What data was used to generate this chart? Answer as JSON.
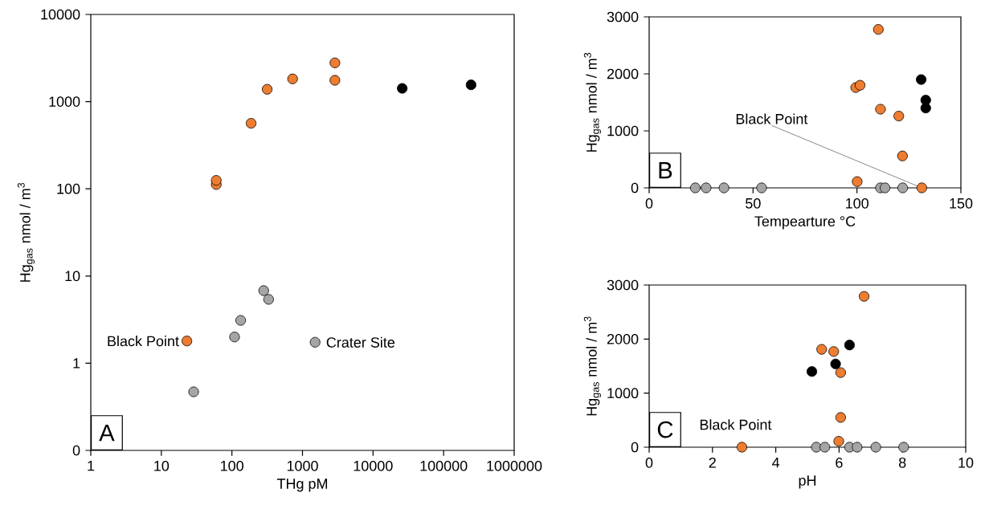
{
  "chart_data": [
    {
      "type": "scatter",
      "xlabel": "THg pM",
      "ylabel": "Hg$_{gas}$ nmol / m$^{3}$",
      "log": "xy",
      "marker": "circle",
      "xlim": [
        1,
        1000000
      ],
      "ylim": [
        0.1,
        10000
      ],
      "xticks": [
        1,
        10,
        100,
        1000,
        10000,
        100000,
        1000000
      ],
      "yticks": [
        {
          "value": 0.1,
          "label": "0"
        },
        1,
        10,
        100,
        1000,
        10000
      ],
      "series": [
        {
          "color": "#ed7d31",
          "x": [
            60,
            60,
            187,
            316,
            725,
            2880,
            2880,
            23
          ],
          "values": [
            112,
            125,
            565,
            1385,
            1824,
            2786,
            1758,
            1.8
          ]
        },
        {
          "color": "#000000",
          "x": [
            25900,
            245000
          ],
          "values": [
            1420,
            1560
          ]
        },
        {
          "color": "#a5a5a5",
          "x": [
            28.7,
            109,
            133,
            282,
            331,
            1510
          ],
          "values": [
            0.47,
            2.0,
            3.1,
            6.8,
            5.4,
            1.74
          ]
        }
      ],
      "annotations": [
        "A",
        {
          "text": "Black Point",
          "x": 23,
          "y": 1.8
        },
        {
          "text": "Crater Site",
          "x": 1510,
          "y": 1.74
        }
      ]
    },
    {
      "type": "scatter",
      "xlabel": "Tempearture °C",
      "ylabel": "Hg$_{gas}$ nmol / m$^{3}$",
      "marker": "circle",
      "xlim": [
        0,
        150
      ],
      "ylim": [
        0,
        3000
      ],
      "xticks": [
        0,
        50,
        100,
        150
      ],
      "yticks": [
        0,
        1000,
        2000,
        3000
      ],
      "series": [
        {
          "color": "#ed7d31",
          "x": [
            110.3,
            99.4,
            101.5,
            111.3,
            120.1,
            121.9,
            100.1,
            131.2
          ],
          "values": [
            2780,
            1760,
            1800,
            1380,
            1260,
            560,
            110,
            0
          ]
        },
        {
          "color": "#000000",
          "x": [
            130.9,
            133.1,
            133.1
          ],
          "values": [
            1900,
            1540,
            1400
          ]
        },
        {
          "color": "#a5a5a5",
          "x": [
            22.2,
            27.4,
            36.0,
            54.1,
            111.3,
            113.5,
            122.0
          ],
          "values": [
            0,
            0,
            0,
            0,
            0,
            0,
            0
          ]
        }
      ],
      "annotations": [
        "B",
        {
          "text": "Black Point",
          "x": 131.2,
          "y": 0
        }
      ]
    },
    {
      "type": "scatter",
      "xlabel": "pH",
      "ylabel": "Hg$_{gas}$ nmol / m$^{3}$",
      "marker": "circle",
      "xlim": [
        0,
        10
      ],
      "ylim": [
        0,
        3000
      ],
      "xticks": [
        0,
        2,
        4,
        6,
        8,
        10
      ],
      "yticks": [
        0,
        1000,
        2000,
        3000
      ],
      "series": [
        {
          "color": "#ed7d31",
          "x": [
            6.79,
            5.45,
            5.83,
            6.05,
            6.05,
            5.99,
            2.93
          ],
          "values": [
            2790,
            1810,
            1770,
            1380,
            550,
            110,
            0
          ]
        },
        {
          "color": "#000000",
          "x": [
            5.14,
            5.89,
            6.33
          ],
          "values": [
            1400,
            1540,
            1890
          ]
        },
        {
          "color": "#a5a5a5",
          "x": [
            5.28,
            5.55,
            6.33,
            6.57,
            7.16,
            8.04
          ],
          "values": [
            0,
            0,
            0,
            0,
            0,
            0
          ]
        }
      ],
      "annotations": [
        "C",
        {
          "text": "Black Point",
          "x": 2.93,
          "y": 0
        }
      ]
    }
  ]
}
